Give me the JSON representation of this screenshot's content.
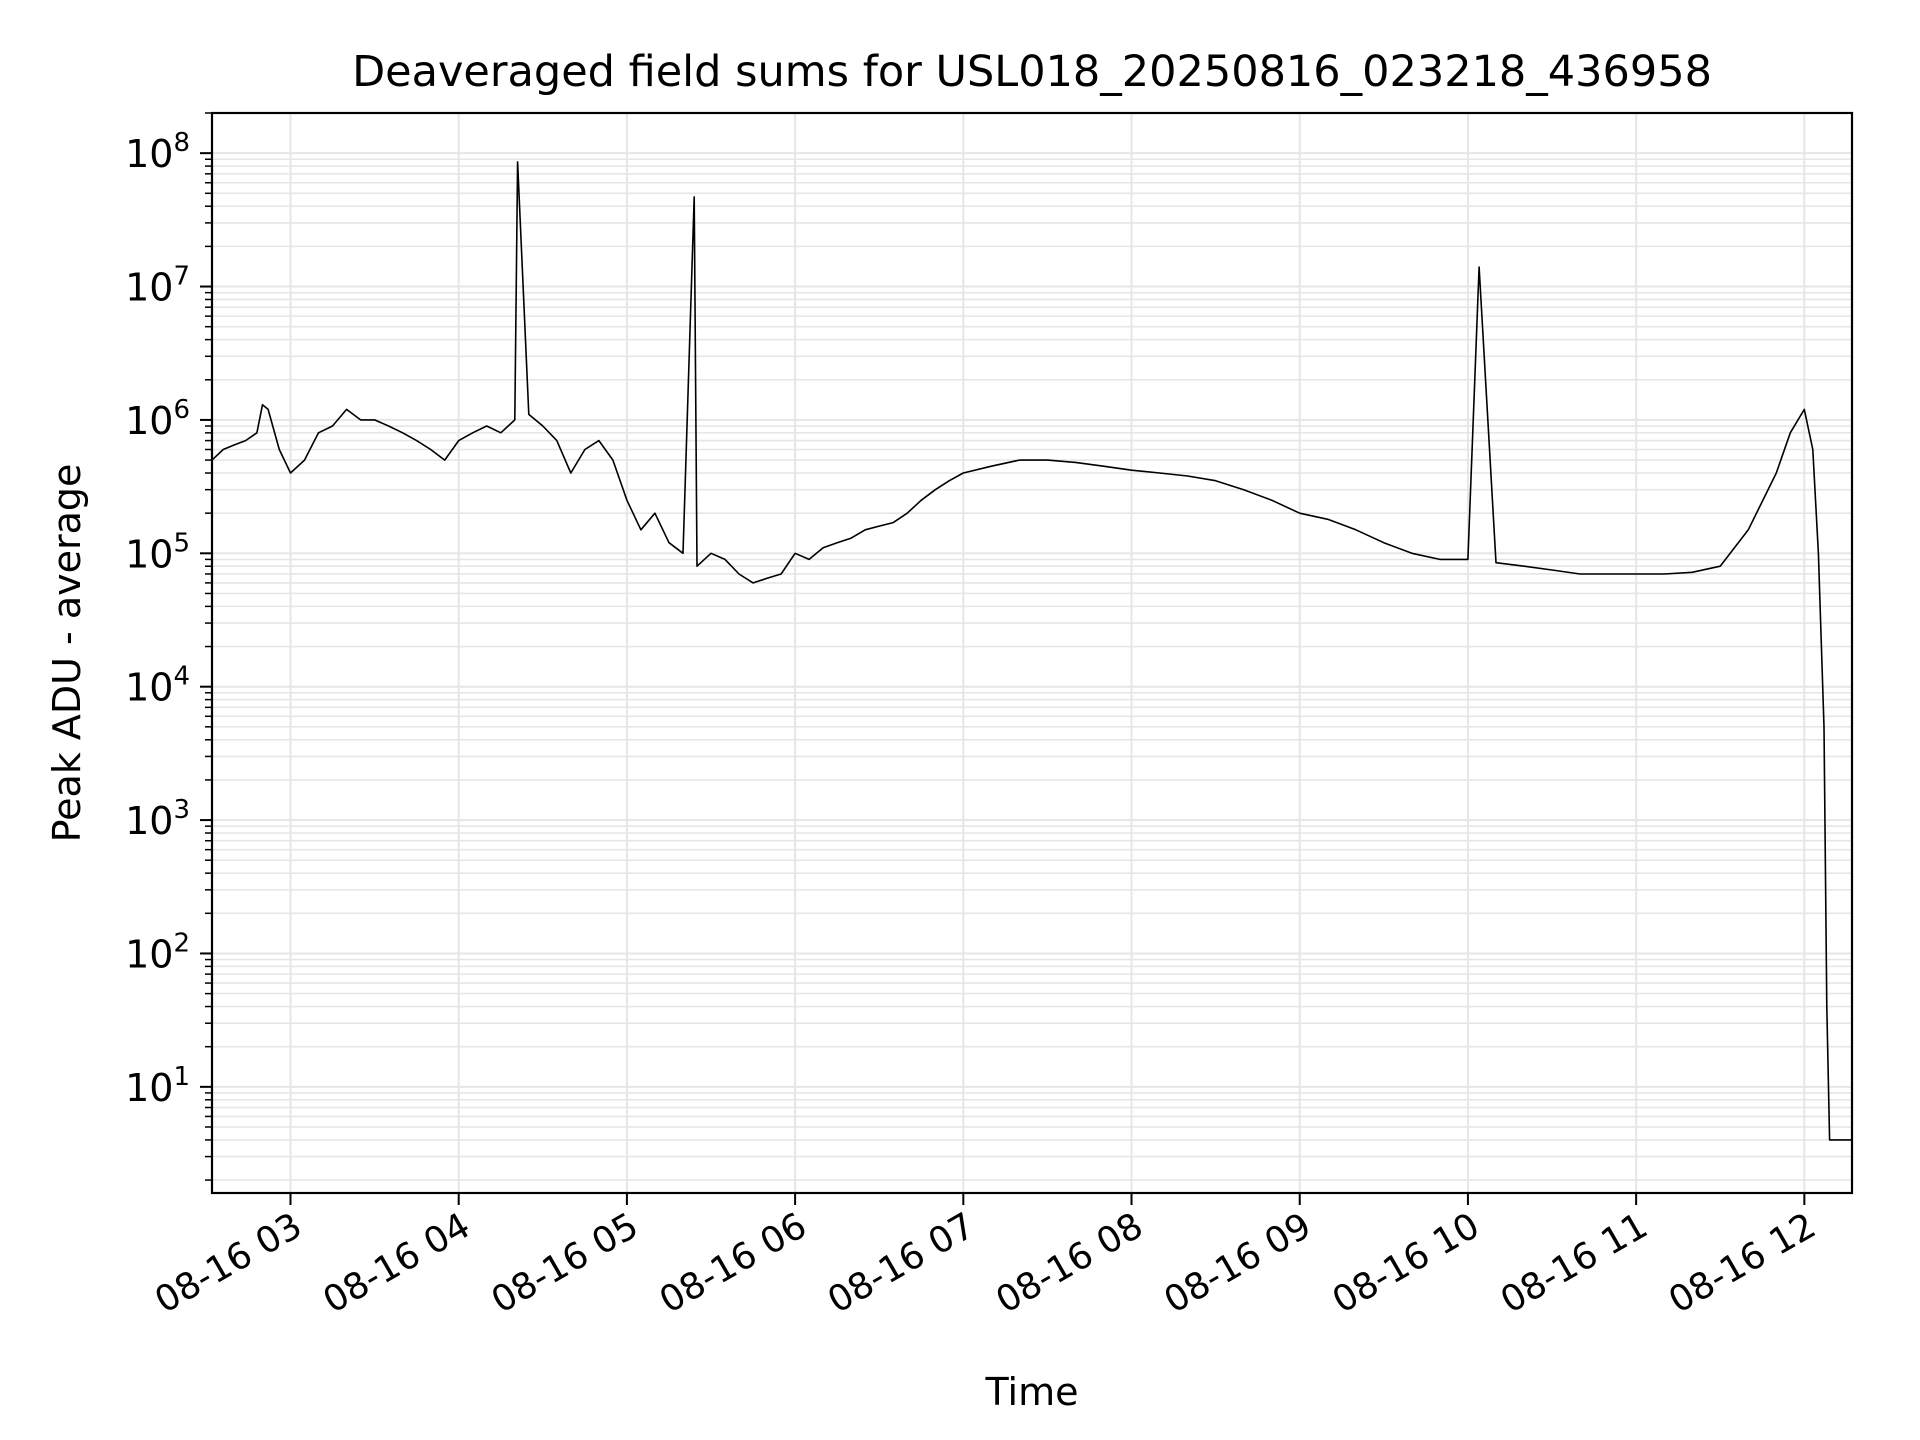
{
  "chart_data": {
    "type": "line",
    "title": "Deaveraged field sums for USL018_20250816_023218_436958",
    "xlabel": "Time",
    "ylabel": "Peak ADU - average",
    "yscale": "log",
    "ylim": [
      1.6,
      200000000.0
    ],
    "xlim": [
      "2025-08-16 02:32",
      "2025-08-16 12:17"
    ],
    "grid": "on",
    "line_color": "#000000",
    "grid_color": "#e6e6e6",
    "x_tick_labels": [
      "08-16 03",
      "08-16 04",
      "08-16 05",
      "08-16 06",
      "08-16 07",
      "08-16 08",
      "08-16 09",
      "08-16 10",
      "08-16 11",
      "08-16 12"
    ],
    "x_tick_values": [
      "2025-08-16 03:00",
      "2025-08-16 04:00",
      "2025-08-16 05:00",
      "2025-08-16 06:00",
      "2025-08-16 07:00",
      "2025-08-16 08:00",
      "2025-08-16 09:00",
      "2025-08-16 10:00",
      "2025-08-16 11:00",
      "2025-08-16 12:00"
    ],
    "y_tick_labels": [
      {
        "base": "10",
        "exp": "1",
        "value": 10
      },
      {
        "base": "10",
        "exp": "2",
        "value": 100
      },
      {
        "base": "10",
        "exp": "3",
        "value": 1000
      },
      {
        "base": "10",
        "exp": "4",
        "value": 10000
      },
      {
        "base": "10",
        "exp": "5",
        "value": 100000
      },
      {
        "base": "10",
        "exp": "6",
        "value": 1000000
      },
      {
        "base": "10",
        "exp": "7",
        "value": 10000000
      },
      {
        "base": "10",
        "exp": "8",
        "value": 100000000
      }
    ],
    "series": [
      {
        "x": [
          "2025-08-16 02:32",
          "2025-08-16 02:36",
          "2025-08-16 02:40",
          "2025-08-16 02:44",
          "2025-08-16 02:48",
          "2025-08-16 02:50",
          "2025-08-16 02:52",
          "2025-08-16 02:56",
          "2025-08-16 03:00",
          "2025-08-16 03:05",
          "2025-08-16 03:10",
          "2025-08-16 03:15",
          "2025-08-16 03:20",
          "2025-08-16 03:25",
          "2025-08-16 03:30",
          "2025-08-16 03:35",
          "2025-08-16 03:40",
          "2025-08-16 03:45",
          "2025-08-16 03:50",
          "2025-08-16 03:55",
          "2025-08-16 04:00",
          "2025-08-16 04:05",
          "2025-08-16 04:10",
          "2025-08-16 04:15",
          "2025-08-16 04:20",
          "2025-08-16 04:21",
          "2025-08-16 04:25",
          "2025-08-16 04:30",
          "2025-08-16 04:35",
          "2025-08-16 04:40",
          "2025-08-16 04:45",
          "2025-08-16 04:50",
          "2025-08-16 04:55",
          "2025-08-16 05:00",
          "2025-08-16 05:05",
          "2025-08-16 05:10",
          "2025-08-16 05:15",
          "2025-08-16 05:20",
          "2025-08-16 05:24",
          "2025-08-16 05:25",
          "2025-08-16 05:30",
          "2025-08-16 05:35",
          "2025-08-16 05:40",
          "2025-08-16 05:45",
          "2025-08-16 05:50",
          "2025-08-16 05:55",
          "2025-08-16 06:00",
          "2025-08-16 06:05",
          "2025-08-16 06:10",
          "2025-08-16 06:15",
          "2025-08-16 06:20",
          "2025-08-16 06:25",
          "2025-08-16 06:30",
          "2025-08-16 06:35",
          "2025-08-16 06:40",
          "2025-08-16 06:45",
          "2025-08-16 06:50",
          "2025-08-16 06:55",
          "2025-08-16 07:00",
          "2025-08-16 07:10",
          "2025-08-16 07:20",
          "2025-08-16 07:30",
          "2025-08-16 07:40",
          "2025-08-16 07:50",
          "2025-08-16 08:00",
          "2025-08-16 08:10",
          "2025-08-16 08:20",
          "2025-08-16 08:30",
          "2025-08-16 08:40",
          "2025-08-16 08:50",
          "2025-08-16 09:00",
          "2025-08-16 09:10",
          "2025-08-16 09:20",
          "2025-08-16 09:30",
          "2025-08-16 09:40",
          "2025-08-16 09:50",
          "2025-08-16 10:00",
          "2025-08-16 10:04",
          "2025-08-16 10:10",
          "2025-08-16 10:20",
          "2025-08-16 10:30",
          "2025-08-16 10:40",
          "2025-08-16 10:50",
          "2025-08-16 11:00",
          "2025-08-16 11:10",
          "2025-08-16 11:20",
          "2025-08-16 11:30",
          "2025-08-16 11:40",
          "2025-08-16 11:50",
          "2025-08-16 11:55",
          "2025-08-16 12:00",
          "2025-08-16 12:03",
          "2025-08-16 12:05",
          "2025-08-16 12:07",
          "2025-08-16 12:08",
          "2025-08-16 12:09",
          "2025-08-16 12:10",
          "2025-08-16 12:17"
        ],
        "y": [
          500000,
          600000,
          650000,
          700000,
          800000,
          1300000,
          1200000,
          600000,
          400000,
          500000,
          800000,
          900000,
          1200000,
          1000000,
          1000000,
          900000,
          800000,
          700000,
          600000,
          500000,
          700000,
          800000,
          900000,
          800000,
          1000000,
          86000000,
          1100000,
          900000,
          700000,
          400000,
          600000,
          700000,
          500000,
          250000,
          150000,
          200000,
          120000,
          100000,
          47000000,
          80000,
          100000,
          90000,
          70000,
          60000,
          65000,
          70000,
          100000,
          90000,
          110000,
          120000,
          130000,
          150000,
          160000,
          170000,
          200000,
          250000,
          300000,
          350000,
          400000,
          450000,
          500000,
          500000,
          480000,
          450000,
          420000,
          400000,
          380000,
          350000,
          300000,
          250000,
          200000,
          180000,
          150000,
          120000,
          100000,
          90000,
          90000,
          14000000,
          85000,
          80000,
          75000,
          70000,
          70000,
          70000,
          70000,
          72000,
          80000,
          150000,
          400000,
          800000,
          1200000,
          600000,
          100000,
          5000,
          40,
          4,
          4,
          4
        ]
      }
    ]
  }
}
